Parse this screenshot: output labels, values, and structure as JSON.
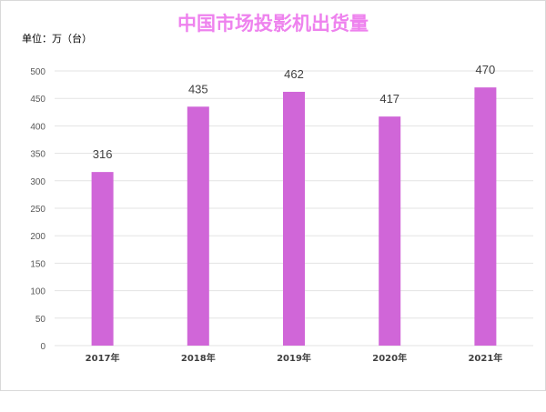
{
  "chart_data": {
    "type": "bar",
    "title": "中国市场投影机出货量",
    "unit_label": "单位：万（台）",
    "categories": [
      "2017年",
      "2018年",
      "2019年",
      "2020年",
      "2021年"
    ],
    "values": [
      316,
      435,
      462,
      417,
      470
    ],
    "ylim": [
      0,
      500
    ],
    "yticks": [
      0,
      50,
      100,
      150,
      200,
      250,
      300,
      350,
      400,
      450,
      500
    ],
    "grid": true,
    "legend": "none",
    "bar_color": "#d066d8",
    "title_color": "#ee82ee"
  }
}
